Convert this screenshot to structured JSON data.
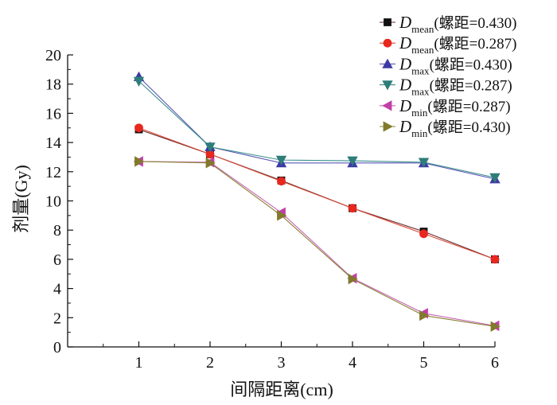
{
  "chart_data": {
    "type": "line",
    "xlabel": "间隔距离(cm)",
    "ylabel": "剂量(Gy)",
    "x": [
      1,
      2,
      3,
      4,
      5,
      6
    ],
    "xlim": [
      0,
      6
    ],
    "ylim": [
      0,
      20
    ],
    "xticks": [
      1,
      2,
      3,
      4,
      5,
      6
    ],
    "yticks": [
      0,
      2,
      4,
      6,
      8,
      10,
      12,
      14,
      16,
      18,
      20
    ],
    "grid": false,
    "legend_position": "top-right",
    "series": [
      {
        "name": "Dmean(螺距=0.430)",
        "symbol": "D",
        "sub": "mean",
        "suffix": "(螺距=0.430)",
        "marker": "square",
        "color": "#111111",
        "line_color": "#6b2a2a",
        "values": [
          14.9,
          13.2,
          11.4,
          9.5,
          7.9,
          6.0
        ]
      },
      {
        "name": "Dmean(螺距=0.287)",
        "symbol": "D",
        "sub": "mean",
        "suffix": "(螺距=0.287)",
        "marker": "circle",
        "color": "#e8271f",
        "line_color": "#d94c3a",
        "values": [
          15.0,
          13.2,
          11.35,
          9.5,
          7.75,
          6.0
        ]
      },
      {
        "name": "Dmax(螺距=0.430)",
        "symbol": "D",
        "sub": "max",
        "suffix": "(螺距=0.430)",
        "marker": "triangle-up",
        "color": "#3d3aa6",
        "line_color": "#5a58b8",
        "values": [
          18.5,
          13.7,
          12.6,
          12.6,
          12.6,
          11.5
        ]
      },
      {
        "name": "Dmax(螺距=0.287)",
        "symbol": "D",
        "sub": "max",
        "suffix": "(螺距=0.287)",
        "marker": "triangle-down",
        "color": "#2e7d7a",
        "line_color": "#3b8f8b",
        "values": [
          18.2,
          13.7,
          12.8,
          12.75,
          12.65,
          11.6
        ]
      },
      {
        "name": "Dmin(螺距=0.287)",
        "symbol": "D",
        "sub": "min",
        "suffix": "(螺距=0.287)",
        "marker": "triangle-left",
        "color": "#c23fa8",
        "line_color": "#c866b5",
        "values": [
          12.7,
          12.65,
          9.2,
          4.7,
          2.3,
          1.45
        ]
      },
      {
        "name": "Dmin(螺距=0.430)",
        "symbol": "D",
        "sub": "min",
        "suffix": "(螺距=0.430)",
        "marker": "triangle-right",
        "color": "#807a2a",
        "line_color": "#8a8436",
        "values": [
          12.7,
          12.6,
          9.0,
          4.65,
          2.15,
          1.4
        ]
      }
    ]
  }
}
